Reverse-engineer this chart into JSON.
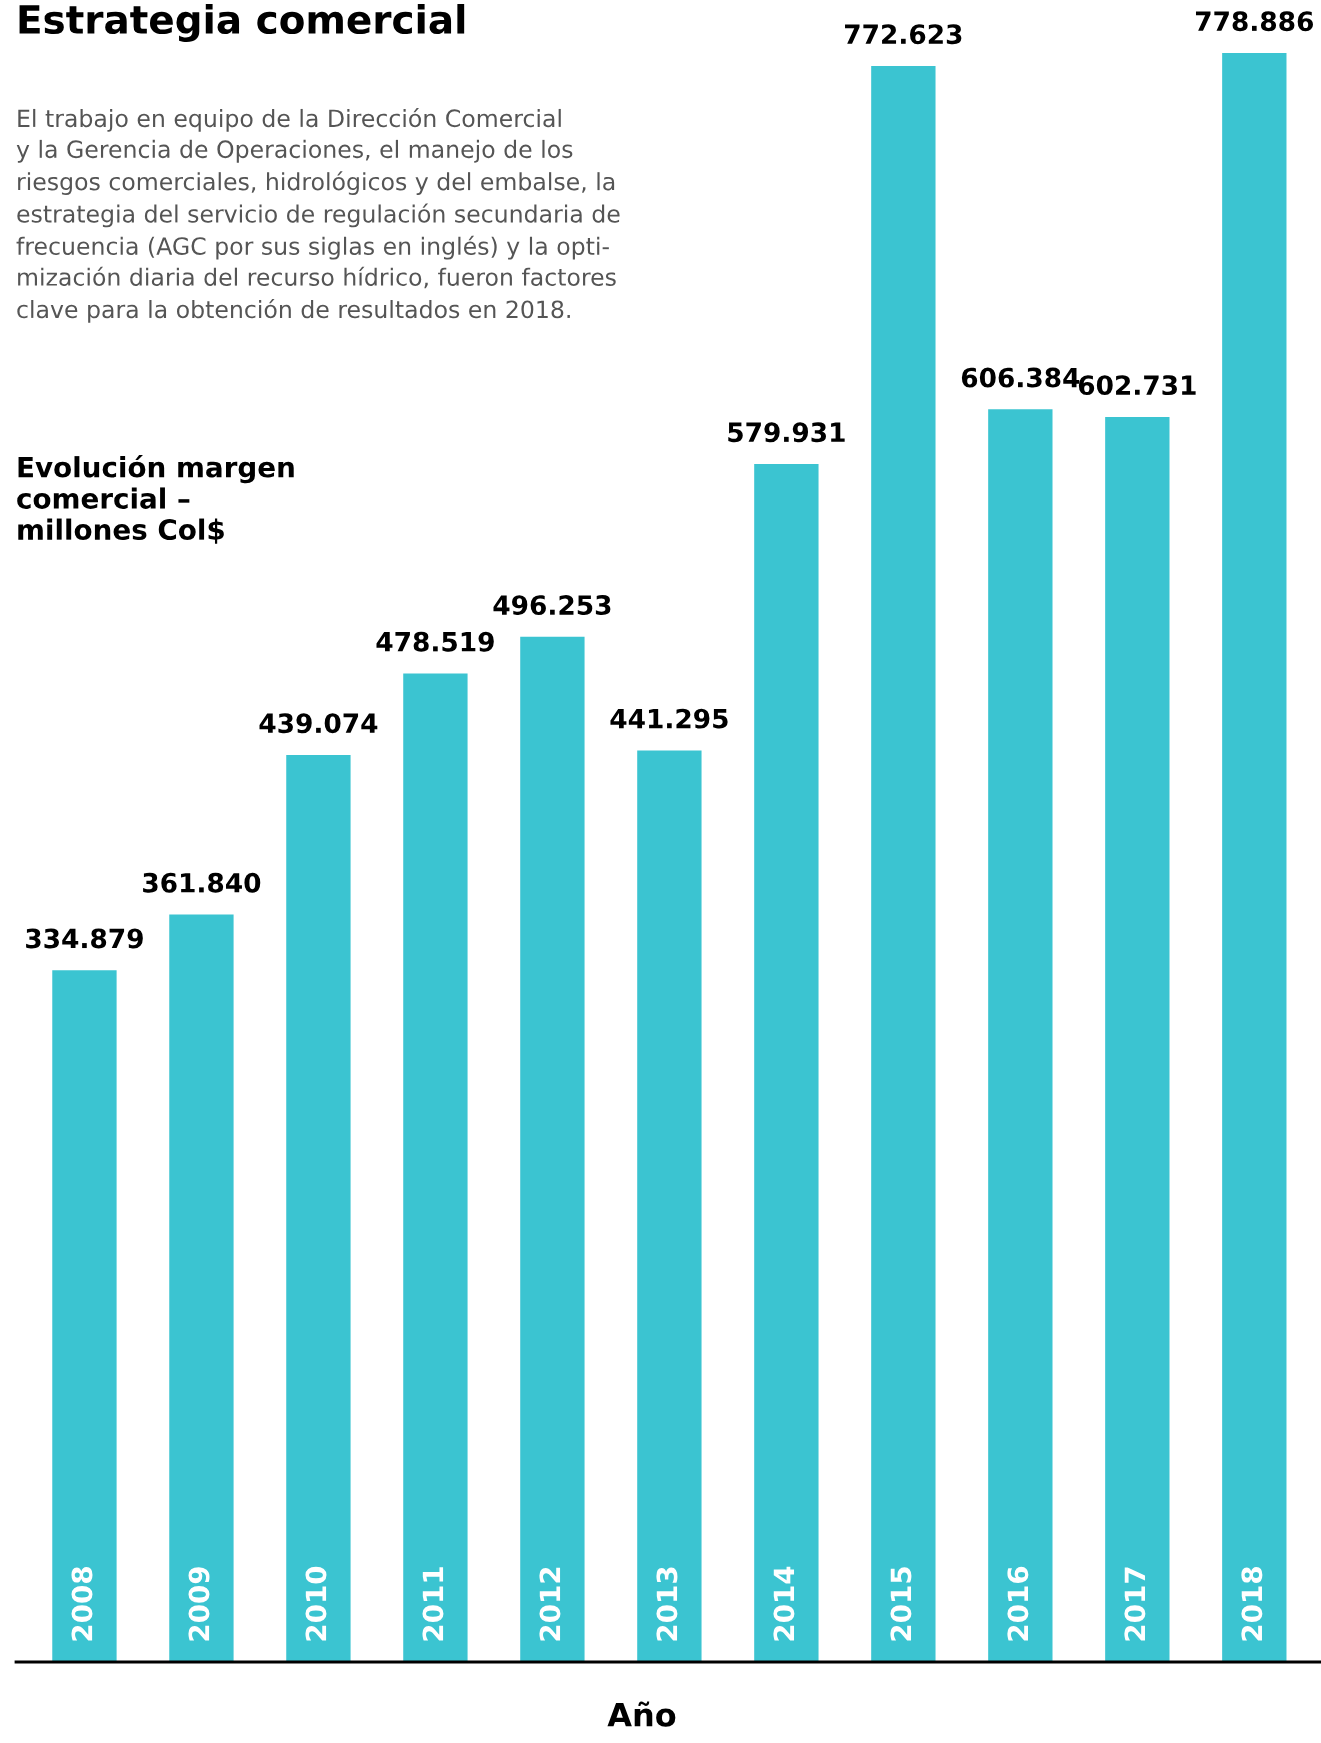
{
  "chart_data": {
    "type": "bar",
    "title": "Estrategia comercial",
    "ylabel": "Evolución margen\ncomercial –\nmillones Col$",
    "xlabel": "Año",
    "annotations": [
      "El trabajo en equipo de la Dirección Comercial\ny la Gerencia de Operaciones, el manejo de los\nriesgos comerciales, hidrológicos y del embalse, la\nestrategia del servicio de regulación secundaria de\nfrecuencia (AGC por sus siglas en inglés) y la opti-\nmización diaria del recurso hídrico, fueron factores\nclave para la obtención de resultados en 2018."
    ],
    "categories": [
      "2008",
      "2009",
      "2010",
      "2011",
      "2012",
      "2013",
      "2014",
      "2015",
      "2016",
      "2017",
      "2018"
    ],
    "values": [
      334879,
      361840,
      439074,
      478519,
      496253,
      441295,
      579931,
      772623,
      606384,
      602731,
      778886
    ],
    "value_labels": [
      "334.879",
      "361.840",
      "439.074",
      "478.519",
      "496.253",
      "441.295",
      "579.931",
      "772.623",
      "606.384",
      "602.731",
      "778.886"
    ],
    "color": "#3bc4d1"
  }
}
